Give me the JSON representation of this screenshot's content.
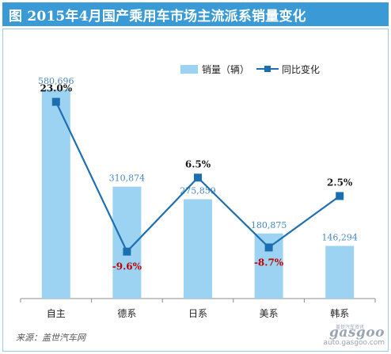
{
  "title": "图  2015年4月国产乘用车市场主流派系销量变化",
  "source": "来源：盖世汽车网",
  "watermark": {
    "logo": "gasgoo",
    "url": "auto.gasgoo.com",
    "tag": "盖世汽车资讯"
  },
  "colors": {
    "title_bg": "#3a9ad6",
    "bar": "#9dd3f2",
    "line": "#1e6fb3",
    "marker": "#1b6fb0",
    "negative": "#c00000"
  },
  "chart_data": {
    "type": "bar",
    "categories": [
      "自主",
      "德系",
      "日系",
      "美系",
      "韩系"
    ],
    "series": [
      {
        "name": "销量（辆）",
        "type": "bar",
        "values": [
          580696,
          310874,
          275859,
          180875,
          146294
        ],
        "labels": [
          "580,696",
          "310,874",
          "275,859",
          "180,875",
          "146,294"
        ]
      },
      {
        "name": "同比变化",
        "type": "line",
        "values": [
          23.0,
          -9.6,
          6.5,
          -8.7,
          2.5
        ],
        "labels": [
          "23.0%",
          "-9.6%",
          "6.5%",
          "-8.7%",
          "2.5%"
        ]
      }
    ],
    "legend": "top-right",
    "grid": false
  }
}
